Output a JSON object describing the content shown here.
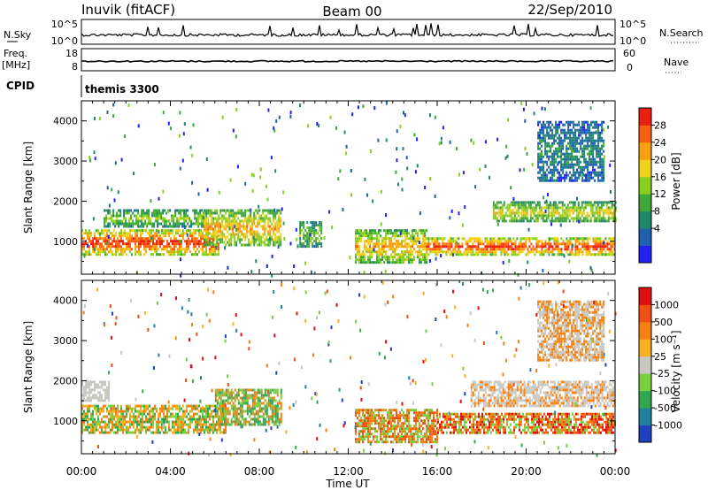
{
  "header": {
    "station": "Inuvik (fitACF)",
    "beam": "Beam 00",
    "date": "22/Sep/2010"
  },
  "top_panels": {
    "nsky_label": "N.Sky",
    "nsky_ticks": [
      "10^5",
      "10^0"
    ],
    "nsearch_label": "N.Search",
    "nsearch_ticks": [
      "10^5",
      "10^0"
    ],
    "freq_label": "Freq.",
    "freq_unit": "[MHz]",
    "freq_ticks": [
      "18",
      "8"
    ],
    "nave_label": "Nave",
    "nave_ticks": [
      "60",
      "0"
    ],
    "cpid_label": "CPID",
    "cpid_value": "themis 3300"
  },
  "chart_data": [
    {
      "type": "heatmap",
      "name": "power",
      "ylabel": "Slant Range [km]",
      "y_ticks": [
        "4000",
        "3000",
        "2000",
        "1000"
      ],
      "ylim": [
        180,
        4500
      ],
      "colorbar_label": "Power [dB]",
      "colorbar_ticks": [
        "28",
        "24",
        "20",
        "16",
        "12",
        "8",
        "4"
      ],
      "colors": [
        "#2020f0",
        "#2060b0",
        "#208868",
        "#40a838",
        "#88d020",
        "#f0d018",
        "#f8a010",
        "#f86010",
        "#e82010"
      ],
      "bands": [
        {
          "range_km": [
            700,
            1300
          ],
          "t_start_h": 0.0,
          "t_end_h": 6.2,
          "level": 8
        },
        {
          "range_km": [
            1400,
            1800
          ],
          "t_start_h": 1.0,
          "t_end_h": 5.5,
          "level": 4
        },
        {
          "range_km": [
            900,
            1800
          ],
          "t_start_h": 5.5,
          "t_end_h": 9.0,
          "level": 6
        },
        {
          "range_km": [
            900,
            1500
          ],
          "t_start_h": 9.8,
          "t_end_h": 10.8,
          "level": 4
        },
        {
          "range_km": [
            500,
            1300
          ],
          "t_start_h": 12.3,
          "t_end_h": 15.5,
          "level": 6
        },
        {
          "range_km": [
            700,
            1100
          ],
          "t_start_h": 15.5,
          "t_end_h": 24.0,
          "level": 8
        },
        {
          "range_km": [
            1500,
            2000
          ],
          "t_start_h": 18.5,
          "t_end_h": 24.0,
          "level": 5
        },
        {
          "range_km": [
            2500,
            4000
          ],
          "t_start_h": 20.5,
          "t_end_h": 23.5,
          "level": 2
        }
      ]
    },
    {
      "type": "heatmap",
      "name": "velocity",
      "ylabel": "Slant Range [km]",
      "x_ticks": [
        "00:00",
        "04:00",
        "08:00",
        "12:00",
        "16:00",
        "20:00",
        "00:00"
      ],
      "xlabel": "Time UT",
      "xlim_hours": [
        0,
        24
      ],
      "y_ticks": [
        "4000",
        "3000",
        "2000",
        "1000"
      ],
      "ylim": [
        180,
        4500
      ],
      "colorbar_label": "Velocity [m s⁻¹]",
      "colorbar_ticks": [
        "1000",
        "500",
        "100",
        "25",
        "-25",
        "-100",
        "-500",
        "-1000"
      ],
      "colors": [
        "#2040c0",
        "#2080a0",
        "#30a850",
        "#78d040",
        "#c8c8c0",
        "#f8b020",
        "#f88010",
        "#f05010",
        "#e01010"
      ],
      "bands": [
        {
          "range_km": [
            700,
            1400
          ],
          "t_start_h": 0.0,
          "t_end_h": 6.5,
          "mix": [
            5,
            6,
            3,
            2
          ]
        },
        {
          "range_km": [
            1500,
            2000
          ],
          "t_start_h": 0.0,
          "t_end_h": 1.2,
          "mix": [
            4
          ]
        },
        {
          "range_km": [
            900,
            1800
          ],
          "t_start_h": 6.0,
          "t_end_h": 9.0,
          "mix": [
            6,
            2,
            3
          ]
        },
        {
          "range_km": [
            500,
            1300
          ],
          "t_start_h": 12.3,
          "t_end_h": 16.0,
          "mix": [
            6,
            7,
            3
          ]
        },
        {
          "range_km": [
            700,
            1200
          ],
          "t_start_h": 16.0,
          "t_end_h": 24.0,
          "mix": [
            6,
            7,
            8,
            3
          ]
        },
        {
          "range_km": [
            1400,
            2000
          ],
          "t_start_h": 17.5,
          "t_end_h": 24.0,
          "mix": [
            4,
            4,
            6
          ]
        },
        {
          "range_km": [
            2500,
            4000
          ],
          "t_start_h": 20.5,
          "t_end_h": 23.5,
          "mix": [
            4,
            6
          ]
        }
      ]
    }
  ]
}
